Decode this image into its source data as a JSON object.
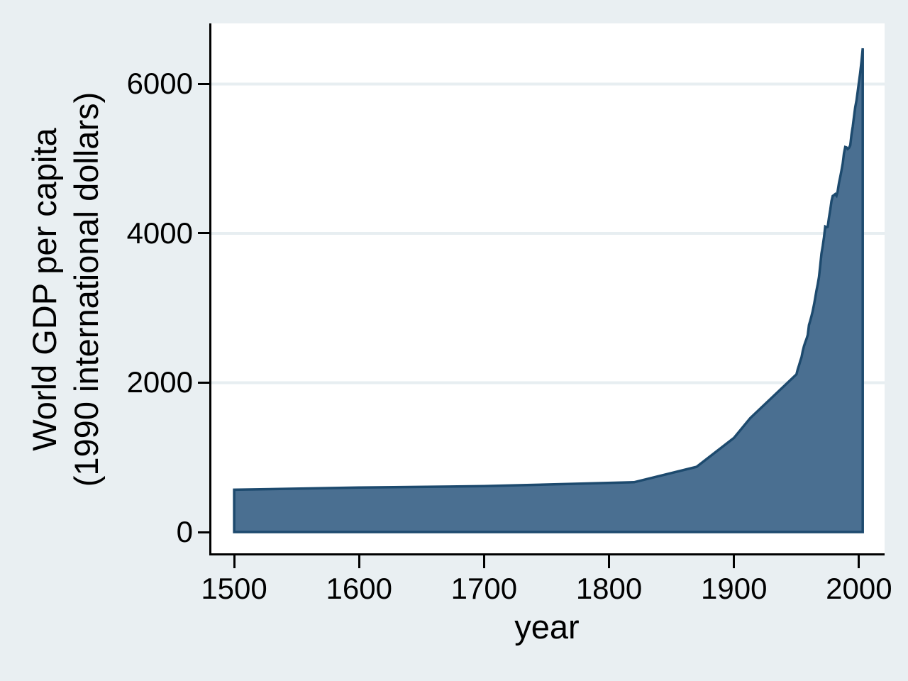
{
  "figure": {
    "background_color": "#e9eff2",
    "plot_background": "#ffffff",
    "grid_color": "#e7eef1",
    "axis_color": "#000000",
    "area_fill_color": "#4a6f91",
    "area_stroke_color": "#1d4a6e"
  },
  "chart_data": {
    "type": "area",
    "title": "",
    "xlabel": "year",
    "ylabel": "World GDP per capita (1990 international dollars)",
    "ylabel_lines": [
      "World GDP per capita",
      "(1990 international dollars)"
    ],
    "x_ticks": [
      1500,
      1600,
      1700,
      1800,
      1900,
      2000
    ],
    "y_ticks": [
      0,
      2000,
      4000,
      6000
    ],
    "xlim": [
      1481.8,
      2020.5
    ],
    "ylim": [
      -285,
      6812
    ],
    "grid": "horizontal-only",
    "gridline_values": [
      2000,
      4000,
      6000
    ],
    "legend_position": "none",
    "series": [
      {
        "name": "World GDP per capita",
        "points": [
          [
            1500,
            566
          ],
          [
            1600,
            596
          ],
          [
            1700,
            615
          ],
          [
            1820,
            667
          ],
          [
            1870,
            873
          ],
          [
            1900,
            1262
          ],
          [
            1913,
            1526
          ],
          [
            1950,
            2113
          ],
          [
            1951,
            2180
          ],
          [
            1952,
            2230
          ],
          [
            1953,
            2290
          ],
          [
            1954,
            2340
          ],
          [
            1955,
            2423
          ],
          [
            1956,
            2490
          ],
          [
            1957,
            2540
          ],
          [
            1958,
            2585
          ],
          [
            1959,
            2640
          ],
          [
            1960,
            2773
          ],
          [
            1961,
            2830
          ],
          [
            1962,
            2890
          ],
          [
            1963,
            2960
          ],
          [
            1964,
            3045
          ],
          [
            1965,
            3135
          ],
          [
            1966,
            3235
          ],
          [
            1967,
            3320
          ],
          [
            1968,
            3415
          ],
          [
            1969,
            3570
          ],
          [
            1970,
            3729
          ],
          [
            1971,
            3830
          ],
          [
            1972,
            3950
          ],
          [
            1973,
            4091
          ],
          [
            1974,
            4082
          ],
          [
            1975,
            4088
          ],
          [
            1976,
            4213
          ],
          [
            1977,
            4314
          ],
          [
            1978,
            4431
          ],
          [
            1979,
            4501
          ],
          [
            1980,
            4512
          ],
          [
            1981,
            4526
          ],
          [
            1982,
            4505
          ],
          [
            1983,
            4567
          ],
          [
            1984,
            4675
          ],
          [
            1985,
            4757
          ],
          [
            1986,
            4842
          ],
          [
            1987,
            4936
          ],
          [
            1988,
            5070
          ],
          [
            1989,
            5156
          ],
          [
            1990,
            5150
          ],
          [
            1991,
            5130
          ],
          [
            1992,
            5145
          ],
          [
            1993,
            5180
          ],
          [
            1994,
            5320
          ],
          [
            1995,
            5430
          ],
          [
            1996,
            5560
          ],
          [
            1997,
            5690
          ],
          [
            1998,
            5780
          ],
          [
            1999,
            5900
          ],
          [
            2000,
            6030
          ],
          [
            2001,
            6150
          ],
          [
            2002,
            6300
          ],
          [
            2003,
            6479
          ]
        ],
        "baseline": 0
      }
    ]
  }
}
